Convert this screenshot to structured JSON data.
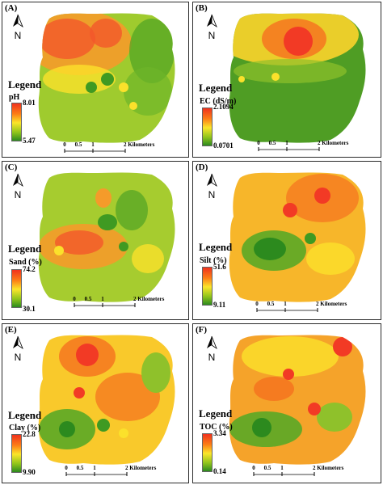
{
  "legend_title": "Legend",
  "north_label": "N",
  "scale": {
    "ticks": [
      "0",
      "0.5",
      "1"
    ],
    "end_label": "2 Kilometers"
  },
  "panels": [
    {
      "label": "(A)",
      "variable": "pH",
      "max": "8.01",
      "min": "5.47"
    },
    {
      "label": "(B)",
      "variable": "EC (dS/m)",
      "max": "2.1094",
      "min": "0.0701"
    },
    {
      "label": "(C)",
      "variable": "Sand (%)",
      "max": "74.2",
      "min": "30.1"
    },
    {
      "label": "(D)",
      "variable": "Silt (%)",
      "max": "51.6",
      "min": "9.11"
    },
    {
      "label": "(E)",
      "variable": "Clay (%)",
      "max": "22.8",
      "min": "9.90"
    },
    {
      "label": "(F)",
      "variable": "TOC (%)",
      "max": "3.34",
      "min": "0.14"
    }
  ],
  "colors": {
    "high": "#f0321e",
    "mid": "#fbe52b",
    "low": "#2c8a1e"
  }
}
